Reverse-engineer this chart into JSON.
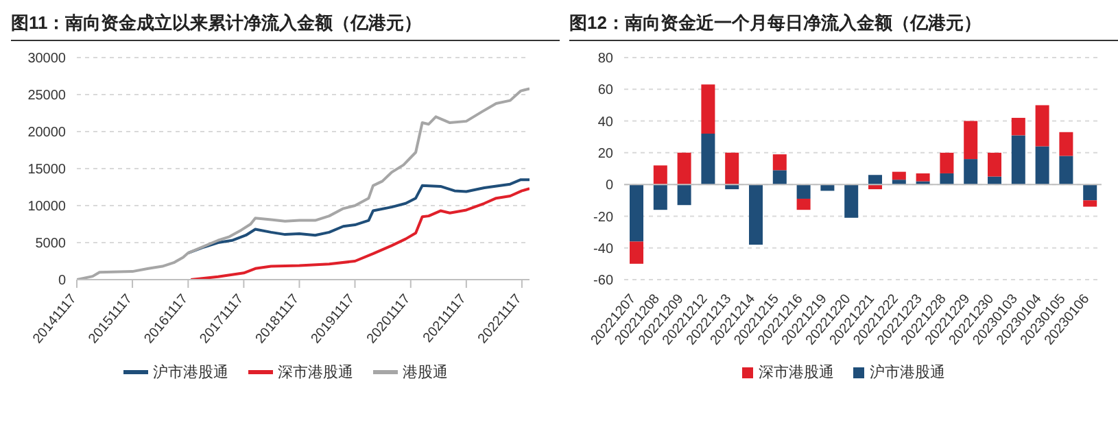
{
  "chart_data": [
    {
      "type": "line",
      "title": "图11：南向资金成立以来累计净流入金额（亿港元）",
      "xlim": [
        "2014-11-17",
        "2023-01-06"
      ],
      "xticks": [
        {
          "value": "2014-11-17",
          "label": "20141117"
        },
        {
          "value": "2015-11-17",
          "label": "20151117"
        },
        {
          "value": "2016-11-17",
          "label": "20161117"
        },
        {
          "value": "2017-11-17",
          "label": "20171117"
        },
        {
          "value": "2018-11-17",
          "label": "20181117"
        },
        {
          "value": "2019-11-17",
          "label": "20191117"
        },
        {
          "value": "2020-11-17",
          "label": "20201117"
        },
        {
          "value": "2021-11-17",
          "label": "20211117"
        },
        {
          "value": "2022-11-17",
          "label": "20221117"
        }
      ],
      "ylim": [
        0,
        30000
      ],
      "yticks": [
        0,
        5000,
        10000,
        15000,
        20000,
        25000,
        30000
      ],
      "grid": "y",
      "legend": "bottom",
      "marker": "none",
      "line_style": "solid",
      "series": [
        {
          "name": "沪市港股通",
          "color": "#1f4e79",
          "x": [
            "2016-11-17",
            "2017-03-01",
            "2017-06-01",
            "2017-09-01",
            "2017-12-01",
            "2018-02-01",
            "2018-05-15",
            "2018-08-15",
            "2018-11-17",
            "2019-03-01",
            "2019-06-01",
            "2019-09-01",
            "2019-11-17",
            "2020-02-15",
            "2020-03-15",
            "2020-07-15",
            "2020-10-15",
            "2020-12-20",
            "2021-02-01",
            "2021-06-01",
            "2021-09-01",
            "2021-11-17",
            "2022-03-15",
            "2022-09-01",
            "2022-11-10",
            "2023-01-06"
          ],
          "values": [
            3600,
            4400,
            5000,
            5300,
            6000,
            6800,
            6400,
            6100,
            6200,
            6000,
            6400,
            7200,
            7400,
            8000,
            9300,
            9800,
            10300,
            11000,
            12700,
            12600,
            12000,
            11900,
            12400,
            12900,
            13500,
            13500
          ]
        },
        {
          "name": "深市港股通",
          "color": "#e0202a",
          "x": [
            "2016-12-05",
            "2017-06-01",
            "2017-11-17",
            "2018-02-01",
            "2018-05-15",
            "2018-11-17",
            "2019-06-01",
            "2019-11-17",
            "2020-03-15",
            "2020-07-15",
            "2020-10-15",
            "2020-12-20",
            "2021-02-01",
            "2021-03-15",
            "2021-06-01",
            "2021-08-01",
            "2021-11-17",
            "2022-03-15",
            "2022-06-01",
            "2022-09-01",
            "2022-11-17",
            "2023-01-06"
          ],
          "values": [
            0,
            400,
            900,
            1500,
            1800,
            1900,
            2100,
            2500,
            3500,
            4600,
            5500,
            6300,
            8500,
            8600,
            9300,
            9000,
            9400,
            10300,
            11000,
            11300,
            12000,
            12300
          ]
        },
        {
          "name": "港股通",
          "color": "#a6a6a6",
          "x": [
            "2014-11-17",
            "2015-03-01",
            "2015-04-15",
            "2015-11-17",
            "2016-03-01",
            "2016-06-01",
            "2016-08-15",
            "2016-10-15",
            "2016-11-17",
            "2017-03-01",
            "2017-06-01",
            "2017-08-15",
            "2017-11-01",
            "2018-01-01",
            "2018-02-01",
            "2018-05-15",
            "2018-08-15",
            "2018-11-17",
            "2019-03-01",
            "2019-06-01",
            "2019-09-01",
            "2019-11-17",
            "2020-02-15",
            "2020-03-15",
            "2020-05-15",
            "2020-07-15",
            "2020-10-01",
            "2020-12-20",
            "2021-02-01",
            "2021-03-15",
            "2021-05-01",
            "2021-08-01",
            "2021-11-17",
            "2022-03-01",
            "2022-06-01",
            "2022-09-01",
            "2022-11-10",
            "2023-01-06"
          ],
          "values": [
            0,
            450,
            1000,
            1100,
            1500,
            1800,
            2300,
            3000,
            3600,
            4500,
            5300,
            5800,
            6700,
            7500,
            8300,
            8100,
            7900,
            8000,
            8000,
            8600,
            9600,
            10000,
            11000,
            12700,
            13300,
            14500,
            15500,
            17200,
            21200,
            21000,
            22000,
            21200,
            21400,
            22700,
            23800,
            24200,
            25500,
            25800
          ]
        }
      ]
    },
    {
      "type": "bar",
      "title": "图12：南向资金近一个月每日净流入金额（亿港元）",
      "stacked": true,
      "categories": [
        "20221207",
        "20221208",
        "20221209",
        "20221212",
        "20221213",
        "20221214",
        "20221215",
        "20221216",
        "20221219",
        "20221220",
        "20221221",
        "20221222",
        "20221223",
        "20221228",
        "20221229",
        "20221230",
        "20230103",
        "20230104",
        "20230105",
        "20230106"
      ],
      "ylim": [
        -60,
        80
      ],
      "yticks": [
        -60,
        -40,
        -20,
        0,
        20,
        40,
        60,
        80
      ],
      "grid": "y",
      "legend": "bottom",
      "series": [
        {
          "name": "沪市港股通",
          "color": "#1f4e79",
          "values": [
            -36,
            -16,
            -13,
            32,
            -3,
            -38,
            9,
            -9,
            -4,
            -21,
            6,
            3,
            2,
            7,
            16,
            5,
            31,
            24,
            18,
            -10
          ]
        },
        {
          "name": "深市港股通",
          "color": "#e0202a",
          "values": [
            -14,
            12,
            20,
            31,
            20,
            0,
            10,
            -7,
            0,
            0,
            -3,
            5,
            5,
            13,
            24,
            15,
            11,
            26,
            15,
            -4
          ]
        }
      ]
    }
  ]
}
